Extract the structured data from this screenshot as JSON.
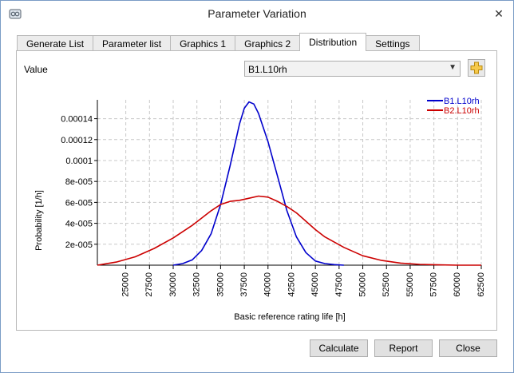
{
  "window": {
    "title": "Parameter Variation",
    "close_glyph": "✕"
  },
  "tabs": [
    {
      "label": "Generate List",
      "active": false
    },
    {
      "label": "Parameter list",
      "active": false
    },
    {
      "label": "Graphics 1",
      "active": false
    },
    {
      "label": "Graphics 2",
      "active": false
    },
    {
      "label": "Distribution",
      "active": true
    },
    {
      "label": "Settings",
      "active": false
    }
  ],
  "value_row": {
    "label": "Value",
    "selected": "B1.L10rh",
    "add_icon": "plus-icon"
  },
  "chart_data": {
    "type": "line",
    "xlabel": "Basic reference rating life [h]",
    "ylabel": "Probability [1/h]",
    "xlim": [
      22000,
      62500
    ],
    "ylim": [
      0,
      0.000158
    ],
    "x_ticks": [
      25000,
      27500,
      30000,
      32500,
      35000,
      37500,
      40000,
      42500,
      45000,
      47500,
      50000,
      52500,
      55000,
      57500,
      60000,
      62500
    ],
    "y_ticks": [
      {
        "value": 2e-05,
        "label": "2e-005"
      },
      {
        "value": 4e-05,
        "label": "4e-005"
      },
      {
        "value": 6e-05,
        "label": "6e-005"
      },
      {
        "value": 8e-05,
        "label": "8e-005"
      },
      {
        "value": 0.0001,
        "label": "0.0001"
      },
      {
        "value": 0.00012,
        "label": "0.00012"
      },
      {
        "value": 0.00014,
        "label": "0.00014"
      }
    ],
    "grid": true,
    "legend_position": "top-right",
    "series": [
      {
        "name": "B1.L10rh",
        "color": "#0000cc",
        "points": [
          [
            30000,
            0
          ],
          [
            31000,
            1.5e-06
          ],
          [
            32000,
            5e-06
          ],
          [
            33000,
            1.4e-05
          ],
          [
            34000,
            3e-05
          ],
          [
            35000,
            5.8e-05
          ],
          [
            36000,
            9.5e-05
          ],
          [
            37000,
            0.000135
          ],
          [
            37500,
            0.00015
          ],
          [
            38000,
            0.000156
          ],
          [
            38500,
            0.000154
          ],
          [
            39000,
            0.000145
          ],
          [
            40000,
            0.000118
          ],
          [
            41000,
            8.5e-05
          ],
          [
            42000,
            5.2e-05
          ],
          [
            43000,
            2.7e-05
          ],
          [
            44000,
            1.2e-05
          ],
          [
            45000,
            4e-06
          ],
          [
            46000,
            1.5e-06
          ],
          [
            47000,
            5e-07
          ],
          [
            48000,
            0
          ]
        ]
      },
      {
        "name": "B2.L10rh",
        "color": "#cc0000",
        "points": [
          [
            22000,
            0
          ],
          [
            24000,
            3e-06
          ],
          [
            26000,
            8e-06
          ],
          [
            28000,
            1.6e-05
          ],
          [
            30000,
            2.6e-05
          ],
          [
            32000,
            3.8e-05
          ],
          [
            34000,
            5.2e-05
          ],
          [
            35000,
            5.8e-05
          ],
          [
            36000,
            6.1e-05
          ],
          [
            37000,
            6.2e-05
          ],
          [
            38000,
            6.4e-05
          ],
          [
            39000,
            6.6e-05
          ],
          [
            40000,
            6.5e-05
          ],
          [
            41000,
            6.1e-05
          ],
          [
            42000,
            5.6e-05
          ],
          [
            43000,
            5e-05
          ],
          [
            44000,
            4.2e-05
          ],
          [
            45000,
            3.4e-05
          ],
          [
            46000,
            2.7e-05
          ],
          [
            48000,
            1.7e-05
          ],
          [
            50000,
            9e-06
          ],
          [
            52000,
            4.5e-06
          ],
          [
            54000,
            2e-06
          ],
          [
            56000,
            8e-07
          ],
          [
            58000,
            3e-07
          ],
          [
            60000,
            0
          ],
          [
            62500,
            0
          ]
        ]
      }
    ]
  },
  "buttons": {
    "calculate": "Calculate",
    "report": "Report",
    "close": "Close"
  }
}
